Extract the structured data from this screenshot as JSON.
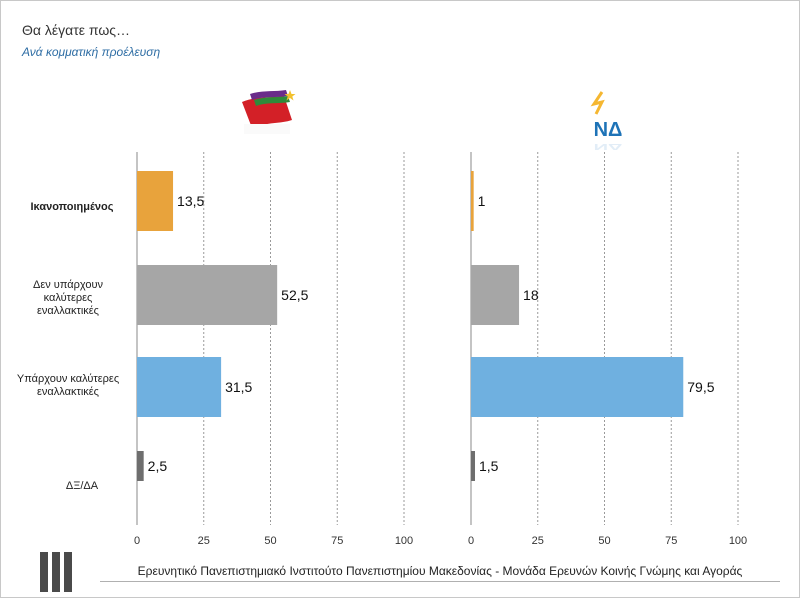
{
  "title": "Θα λέγατε πως…",
  "subtitle": "Ανά κομματική προέλευση",
  "footer": "Ερευνητικό Πανεπιστημιακό Ινστιτούτο Πανεπιστημίου Μακεδονίας - Μονάδα Ερευνών Κοινής Γνώμης και Αγοράς",
  "logos": {
    "left_party_logo": "syriza-flag-logo",
    "right_party_logo_text": "ΝΔ"
  },
  "categories": [
    {
      "label": "Ικανοποιημένος",
      "bold": true
    },
    {
      "label": "Δεν υπάρχουν καλύτερες εναλλακτικές",
      "bold": false
    },
    {
      "label": "Υπάρχουν καλύτερες εναλλακτικές",
      "bold": false
    },
    {
      "label": "ΔΞ/ΔΑ",
      "bold": false
    }
  ],
  "chart_data": [
    {
      "type": "bar",
      "orientation": "horizontal",
      "panel": "left",
      "categories": [
        "Ικανοποιημένος",
        "Δεν υπάρχουν καλύτερες εναλλακτικές",
        "Υπάρχουν καλύτερες εναλλακτικές",
        "ΔΞ/ΔΑ"
      ],
      "values": [
        13.5,
        52.5,
        31.5,
        2.5
      ],
      "value_labels": [
        "13,5",
        "52,5",
        "31,5",
        "2,5"
      ],
      "xlim": [
        0,
        100
      ],
      "xticks": [
        0,
        25,
        50,
        75,
        100
      ],
      "bar_colors": [
        "#e8a33c",
        "#a6a6a6",
        "#6fb0e0",
        "#6e6e6e"
      ],
      "grid": "vertical dashed"
    },
    {
      "type": "bar",
      "orientation": "horizontal",
      "panel": "right",
      "categories": [
        "Ικανοποιημένος",
        "Δεν υπάρχουν καλύτερες εναλλακτικές",
        "Υπάρχουν καλύτερες εναλλακτικές",
        "ΔΞ/ΔΑ"
      ],
      "values": [
        1,
        18,
        79.5,
        1.5
      ],
      "value_labels": [
        "1",
        "18",
        "79,5",
        "1,5"
      ],
      "xlim": [
        0,
        100
      ],
      "xticks": [
        0,
        25,
        50,
        75,
        100
      ],
      "bar_colors": [
        "#e8a33c",
        "#a6a6a6",
        "#6fb0e0",
        "#6e6e6e"
      ],
      "grid": "vertical dashed"
    }
  ]
}
